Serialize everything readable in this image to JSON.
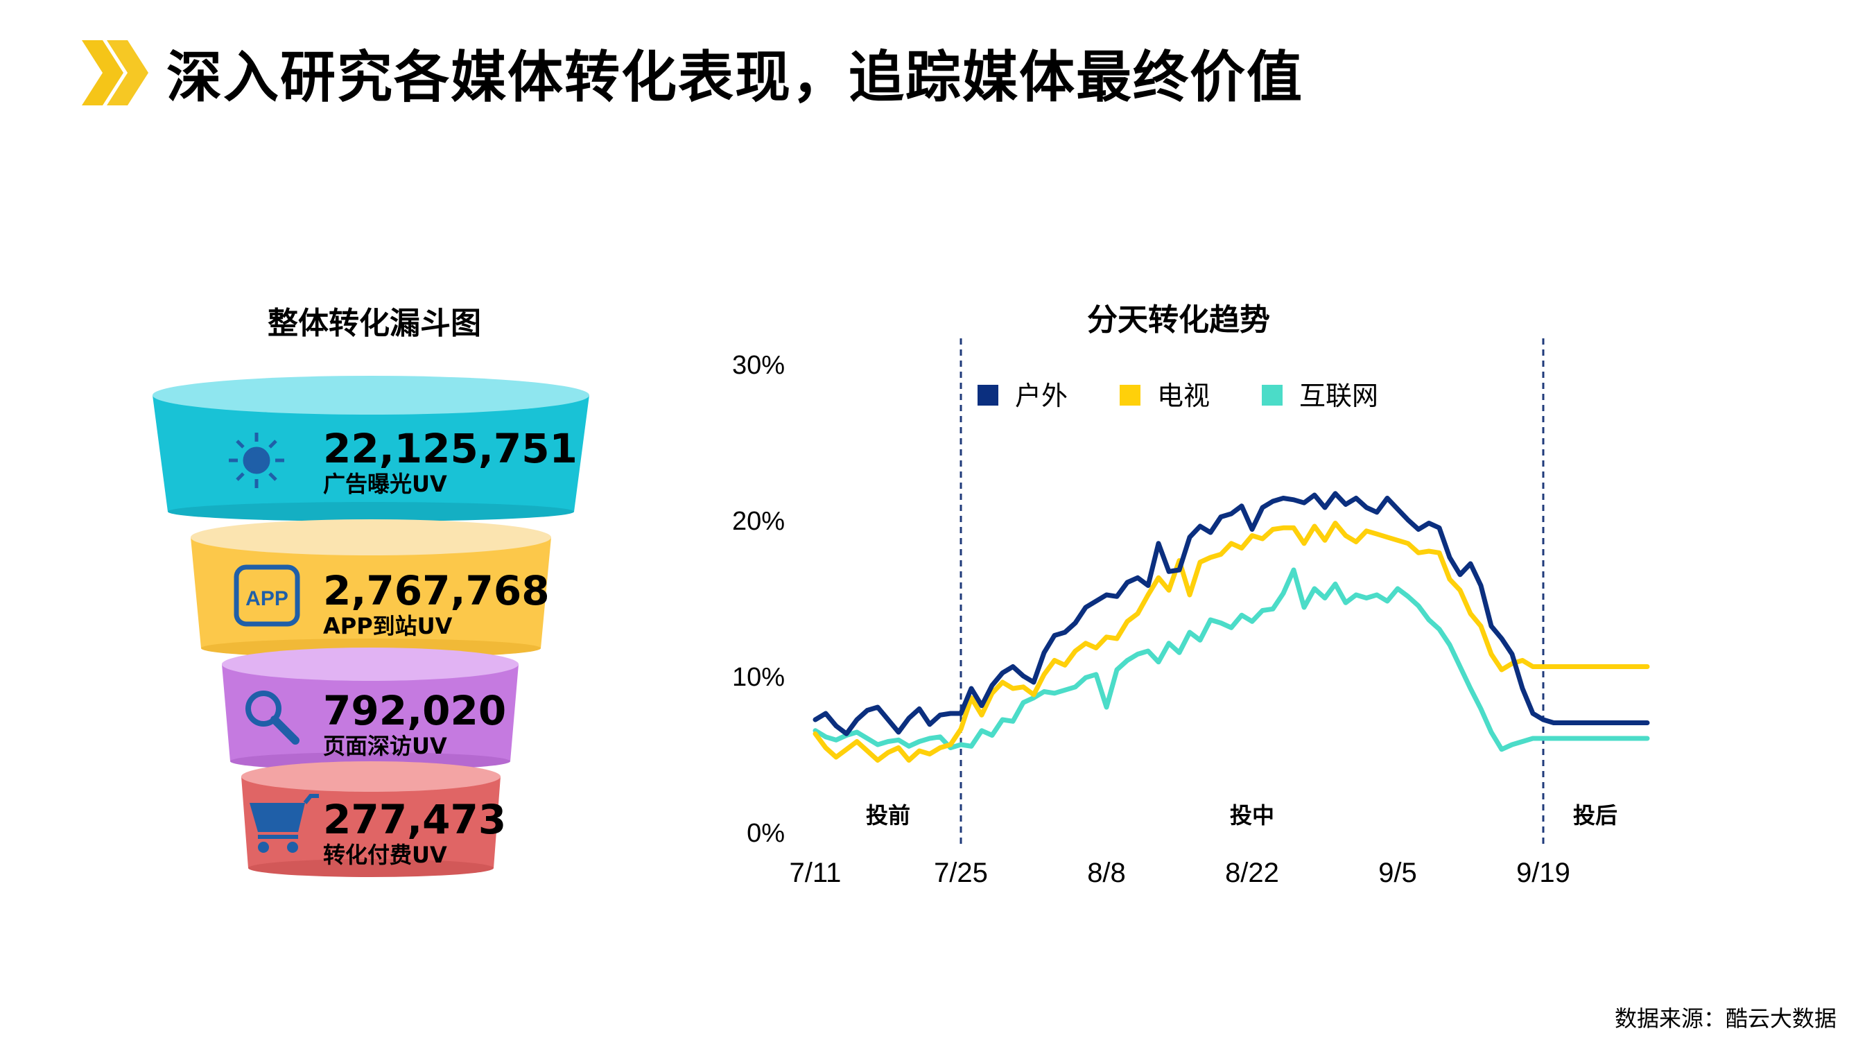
{
  "header": {
    "title": "深入研究各媒体转化表现，追踪媒体最终价值",
    "chevron_color": "#F5C518"
  },
  "funnel": {
    "title": "整体转化漏斗图",
    "stages": [
      {
        "value": "22,125,751",
        "label": "广告曝光UV",
        "icon": "sun-icon",
        "color": "#19C2D6"
      },
      {
        "value": "2,767,768",
        "label": "APP到站UV",
        "icon": "app-icon",
        "color": "#FCC84A"
      },
      {
        "value": "792,020",
        "label": "页面深访UV",
        "icon": "search-icon",
        "color": "#C57AE0"
      },
      {
        "value": "277,473",
        "label": "转化付费UV",
        "icon": "cart-icon",
        "color": "#E06565"
      }
    ],
    "icon_color": "#1F5FA8"
  },
  "trend": {
    "title": "分天转化趋势"
  },
  "chart_data": {
    "type": "line",
    "title": "分天转化趋势",
    "x": [
      "7/11",
      "7/12",
      "7/13",
      "7/14",
      "7/15",
      "7/16",
      "7/17",
      "7/18",
      "7/19",
      "7/20",
      "7/21",
      "7/22",
      "7/23",
      "7/24",
      "7/25",
      "7/26",
      "7/27",
      "7/28",
      "7/29",
      "7/30",
      "7/31",
      "8/1",
      "8/2",
      "8/3",
      "8/4",
      "8/5",
      "8/6",
      "8/7",
      "8/8",
      "8/9",
      "8/10",
      "8/11",
      "8/12",
      "8/13",
      "8/14",
      "8/15",
      "8/16",
      "8/17",
      "8/18",
      "8/19",
      "8/20",
      "8/21",
      "8/22",
      "8/23",
      "8/24",
      "8/25",
      "8/26",
      "8/27",
      "8/28",
      "8/29",
      "8/30",
      "8/31",
      "9/1",
      "9/2",
      "9/3",
      "9/4",
      "9/5",
      "9/6",
      "9/7",
      "9/8",
      "9/9",
      "9/10",
      "9/11",
      "9/12",
      "9/13",
      "9/14",
      "9/15",
      "9/16",
      "9/17",
      "9/18",
      "9/19",
      "9/20",
      "9/21",
      "9/22",
      "9/23",
      "9/24",
      "9/25",
      "9/26",
      "9/27",
      "9/28",
      "9/29"
    ],
    "x_ticks": [
      "7/11",
      "7/25",
      "8/8",
      "8/22",
      "9/5",
      "9/19"
    ],
    "y_ticks": [
      "0%",
      "10%",
      "20%",
      "30%"
    ],
    "ylim": [
      0,
      30
    ],
    "y_unit": "%",
    "series": [
      {
        "name": "户外",
        "color": "#0B2F7F",
        "values": [
          7.2,
          7.6,
          6.8,
          6.3,
          7.2,
          7.8,
          8.0,
          7.2,
          6.4,
          7.3,
          7.9,
          6.9,
          7.5,
          7.6,
          7.6,
          9.2,
          8.1,
          9.4,
          10.2,
          10.6,
          10.0,
          9.6,
          11.5,
          12.6,
          12.8,
          13.4,
          14.4,
          14.8,
          15.2,
          15.1,
          16.0,
          16.3,
          15.8,
          18.5,
          16.7,
          16.8,
          18.9,
          19.6,
          19.2,
          20.2,
          20.4,
          20.9,
          19.4,
          20.8,
          21.2,
          21.4,
          21.3,
          21.1,
          21.6,
          20.8,
          21.7,
          21.0,
          21.4,
          20.8,
          20.5,
          21.4,
          20.7,
          20.0,
          19.4,
          19.8,
          19.5,
          17.6,
          16.5,
          17.2,
          15.8,
          13.2,
          12.4,
          11.4,
          9.2,
          7.6,
          7.2,
          7.0,
          7.0,
          7.0,
          7.0,
          7.0,
          7.0,
          7.0,
          7.0,
          7.0,
          7.0
        ]
      },
      {
        "name": "电视",
        "color": "#FFD00A",
        "values": [
          6.3,
          5.4,
          4.8,
          5.3,
          5.8,
          5.2,
          4.6,
          5.1,
          5.4,
          4.6,
          5.2,
          5.0,
          5.4,
          5.6,
          6.6,
          8.6,
          7.5,
          8.9,
          9.6,
          9.2,
          9.3,
          8.8,
          10.1,
          11.0,
          10.7,
          11.6,
          12.1,
          11.8,
          12.5,
          12.4,
          13.5,
          14.0,
          15.2,
          16.3,
          15.5,
          17.4,
          15.2,
          17.3,
          17.6,
          17.8,
          18.5,
          18.2,
          19.0,
          18.8,
          19.4,
          19.5,
          19.5,
          18.5,
          19.6,
          18.7,
          19.8,
          19.0,
          18.6,
          19.3,
          19.1,
          18.9,
          18.7,
          18.5,
          17.9,
          18.0,
          17.9,
          16.2,
          15.5,
          14.0,
          13.2,
          11.4,
          10.4,
          10.8,
          11.0,
          10.6,
          10.6,
          10.6,
          10.6,
          10.6,
          10.6,
          10.6,
          10.6,
          10.6,
          10.6,
          10.6,
          10.6
        ]
      },
      {
        "name": "互联网",
        "color": "#4BDCC8",
        "values": [
          6.5,
          6.1,
          5.9,
          6.2,
          6.4,
          6.0,
          5.6,
          5.8,
          5.9,
          5.5,
          5.8,
          6.0,
          6.1,
          5.4,
          5.6,
          5.5,
          6.5,
          6.2,
          7.2,
          7.1,
          8.3,
          8.6,
          9.0,
          8.9,
          9.1,
          9.3,
          9.9,
          10.1,
          8.0,
          10.4,
          11.0,
          11.4,
          11.6,
          10.9,
          12.1,
          11.5,
          12.8,
          12.3,
          13.6,
          13.4,
          13.1,
          13.9,
          13.5,
          14.2,
          14.3,
          15.3,
          16.8,
          14.4,
          15.6,
          15.0,
          15.9,
          14.7,
          15.2,
          15.0,
          15.2,
          14.8,
          15.6,
          15.1,
          14.5,
          13.6,
          13.0,
          12.0,
          10.6,
          9.2,
          7.9,
          6.4,
          5.3,
          5.6,
          5.8,
          6.0,
          6.0,
          6.0,
          6.0,
          6.0,
          6.0,
          6.0,
          6.0,
          6.0,
          6.0,
          6.0,
          6.0
        ]
      }
    ],
    "legend": "top",
    "phases": [
      {
        "label": "投前"
      },
      {
        "label": "投中"
      },
      {
        "label": "投后"
      }
    ],
    "dividers": [
      "7/25",
      "9/19"
    ]
  },
  "footer": {
    "source": "数据来源：酷云大数据"
  }
}
